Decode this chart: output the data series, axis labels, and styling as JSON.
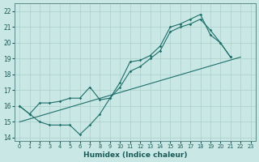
{
  "xlabel": "Humidex (Indice chaleur)",
  "background_color": "#c9e8e5",
  "grid_color": "#aacfcc",
  "line_color": "#1e6e6a",
  "xlim": [
    -0.5,
    23.5
  ],
  "ylim": [
    13.8,
    22.5
  ],
  "xticks": [
    0,
    1,
    2,
    3,
    4,
    5,
    6,
    7,
    8,
    9,
    10,
    11,
    12,
    13,
    14,
    15,
    16,
    17,
    18,
    19,
    20,
    21,
    22,
    23
  ],
  "yticks": [
    14,
    15,
    16,
    17,
    18,
    19,
    20,
    21,
    22
  ],
  "curve1_x": [
    0,
    1,
    2,
    3,
    4,
    5,
    6,
    7,
    8,
    9,
    10,
    11,
    12,
    13,
    14,
    15,
    16,
    17,
    18,
    19,
    20,
    21
  ],
  "curve1_y": [
    16.0,
    15.5,
    15.0,
    14.8,
    14.8,
    14.8,
    14.2,
    14.8,
    15.5,
    16.5,
    17.2,
    18.2,
    18.5,
    19.0,
    19.5,
    20.7,
    21.0,
    21.2,
    21.5,
    20.8,
    20.0,
    19.1
  ],
  "curve2_x": [
    0,
    1,
    2,
    3,
    4,
    5,
    6,
    7,
    8,
    9,
    10,
    11,
    12,
    13,
    14,
    15,
    16,
    17,
    18,
    19,
    20,
    21
  ],
  "curve2_y": [
    16.0,
    15.5,
    16.2,
    16.2,
    16.3,
    16.5,
    16.5,
    17.2,
    16.4,
    16.5,
    17.5,
    18.8,
    18.9,
    19.2,
    19.8,
    21.0,
    21.2,
    21.5,
    21.8,
    20.5,
    20.0,
    19.1
  ],
  "line3_x": [
    0,
    22
  ],
  "line3_y": [
    15.0,
    19.1
  ]
}
